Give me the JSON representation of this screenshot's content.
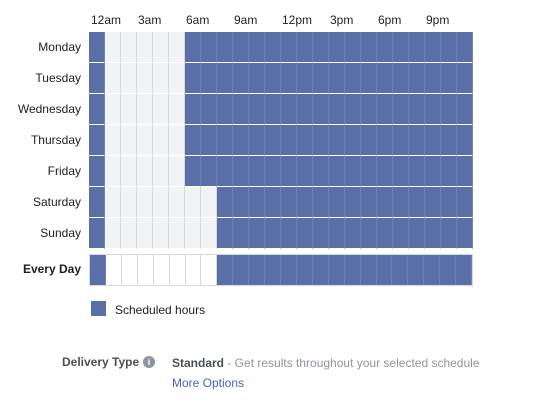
{
  "schedule": {
    "hour_labels": [
      "12am",
      "3am",
      "6am",
      "9am",
      "12pm",
      "3pm",
      "6pm",
      "9pm"
    ],
    "days": [
      {
        "name": "Monday",
        "scheduled": [
          1,
          0,
          0,
          0,
          0,
          0,
          1,
          1,
          1,
          1,
          1,
          1,
          1,
          1,
          1,
          1,
          1,
          1,
          1,
          1,
          1,
          1,
          1,
          1
        ]
      },
      {
        "name": "Tuesday",
        "scheduled": [
          1,
          0,
          0,
          0,
          0,
          0,
          1,
          1,
          1,
          1,
          1,
          1,
          1,
          1,
          1,
          1,
          1,
          1,
          1,
          1,
          1,
          1,
          1,
          1
        ]
      },
      {
        "name": "Wednesday",
        "scheduled": [
          1,
          0,
          0,
          0,
          0,
          0,
          1,
          1,
          1,
          1,
          1,
          1,
          1,
          1,
          1,
          1,
          1,
          1,
          1,
          1,
          1,
          1,
          1,
          1
        ]
      },
      {
        "name": "Thursday",
        "scheduled": [
          1,
          0,
          0,
          0,
          0,
          0,
          1,
          1,
          1,
          1,
          1,
          1,
          1,
          1,
          1,
          1,
          1,
          1,
          1,
          1,
          1,
          1,
          1,
          1
        ]
      },
      {
        "name": "Friday",
        "scheduled": [
          1,
          0,
          0,
          0,
          0,
          0,
          1,
          1,
          1,
          1,
          1,
          1,
          1,
          1,
          1,
          1,
          1,
          1,
          1,
          1,
          1,
          1,
          1,
          1
        ]
      },
      {
        "name": "Saturday",
        "scheduled": [
          1,
          0,
          0,
          0,
          0,
          0,
          0,
          0,
          1,
          1,
          1,
          1,
          1,
          1,
          1,
          1,
          1,
          1,
          1,
          1,
          1,
          1,
          1,
          1
        ]
      },
      {
        "name": "Sunday",
        "scheduled": [
          1,
          0,
          0,
          0,
          0,
          0,
          0,
          0,
          1,
          1,
          1,
          1,
          1,
          1,
          1,
          1,
          1,
          1,
          1,
          1,
          1,
          1,
          1,
          1
        ]
      }
    ],
    "every_day": {
      "name": "Every Day",
      "scheduled": [
        1,
        0,
        0,
        0,
        0,
        0,
        0,
        0,
        1,
        1,
        1,
        1,
        1,
        1,
        1,
        1,
        1,
        1,
        1,
        1,
        1,
        1,
        1,
        1
      ]
    }
  },
  "legend": {
    "label": "Scheduled hours"
  },
  "delivery": {
    "label": "Delivery Type",
    "type": "Standard",
    "description": " - Get results throughout your selected schedule",
    "more_options": "More Options"
  },
  "colors": {
    "scheduled": "#5a6ea8",
    "unscheduled": "#f2f3f5",
    "link": "#4267b2"
  }
}
